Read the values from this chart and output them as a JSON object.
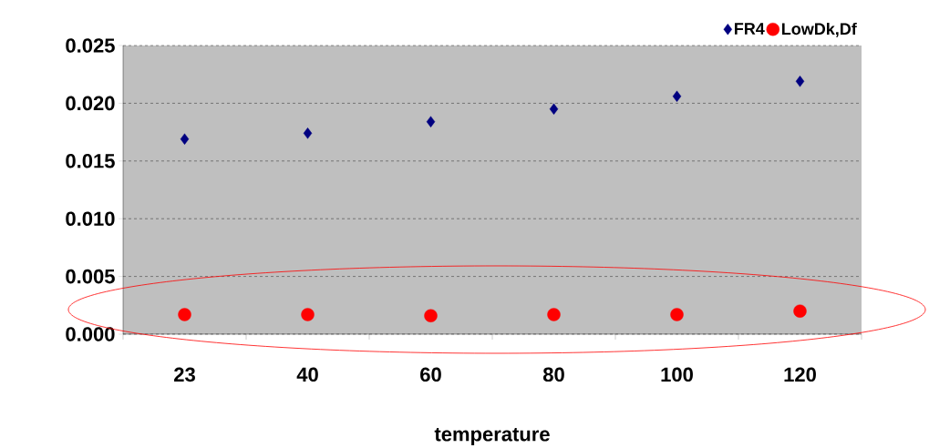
{
  "chart_data": {
    "type": "scatter",
    "xlabel": "temperature",
    "categories": [
      "23",
      "40",
      "60",
      "80",
      "100",
      "120"
    ],
    "series": [
      {
        "name": "FR4",
        "color": "#000080",
        "marker": "diamond",
        "values": [
          0.0169,
          0.0174,
          0.0184,
          0.0195,
          0.0206,
          0.0219
        ]
      },
      {
        "name": "LowDk,Df",
        "color": "#ff0000",
        "marker": "circle",
        "values": [
          0.0017,
          0.0017,
          0.0016,
          0.0017,
          0.0017,
          0.002
        ]
      }
    ],
    "ylim": [
      0,
      0.025
    ],
    "yticks": [
      {
        "value": 0,
        "label": "0.000"
      },
      {
        "value": 0.005,
        "label": "0.005"
      },
      {
        "value": 0.01,
        "label": "0.010"
      },
      {
        "value": 0.015,
        "label": "0.015"
      },
      {
        "value": 0.02,
        "label": "0.020"
      },
      {
        "value": 0.025,
        "label": "0.025"
      }
    ],
    "grid": "y",
    "legend": "top right"
  }
}
